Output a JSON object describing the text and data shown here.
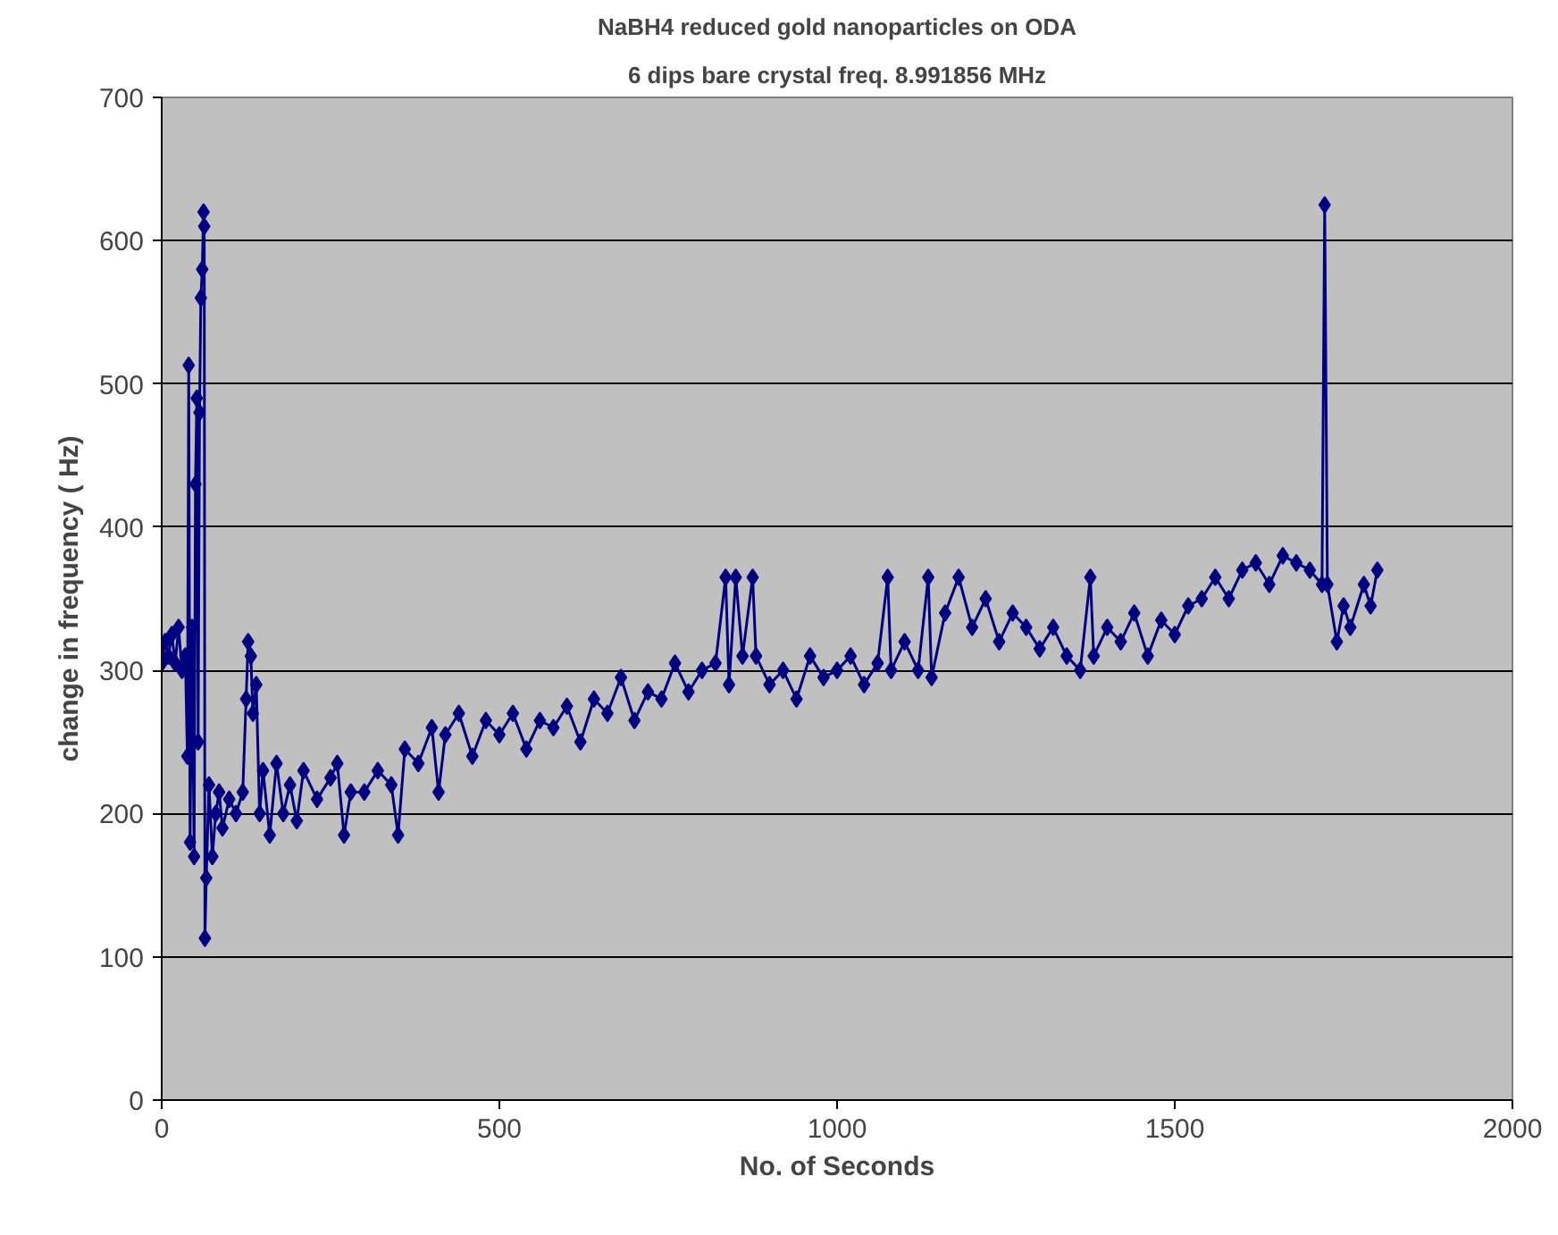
{
  "chart_data": {
    "type": "line",
    "title": "NaBH4 reduced gold nanoparticles on ODA",
    "subtitle": "6 dips bare crystal freq. 8.991856 MHz",
    "xlabel": "No. of Seconds",
    "ylabel": "change in frequency ( Hz)",
    "x": [
      0,
      5,
      10,
      15,
      20,
      25,
      30,
      35,
      38,
      40,
      42,
      45,
      48,
      50,
      52,
      54,
      56,
      58,
      60,
      62,
      63,
      64,
      66,
      70,
      75,
      80,
      85,
      90,
      100,
      110,
      120,
      125,
      128,
      132,
      135,
      140,
      145,
      150,
      160,
      170,
      180,
      190,
      200,
      210,
      230,
      250,
      260,
      270,
      280,
      300,
      320,
      340,
      350,
      360,
      380,
      400,
      410,
      420,
      440,
      460,
      480,
      500,
      520,
      540,
      560,
      580,
      600,
      620,
      640,
      660,
      680,
      700,
      720,
      740,
      760,
      780,
      800,
      820,
      835,
      840,
      850,
      860,
      875,
      880,
      900,
      920,
      940,
      960,
      980,
      1000,
      1020,
      1040,
      1060,
      1075,
      1080,
      1100,
      1120,
      1135,
      1140,
      1160,
      1180,
      1200,
      1220,
      1240,
      1260,
      1280,
      1300,
      1320,
      1340,
      1360,
      1375,
      1380,
      1400,
      1420,
      1440,
      1460,
      1480,
      1500,
      1520,
      1540,
      1560,
      1580,
      1600,
      1620,
      1640,
      1660,
      1680,
      1700,
      1718,
      1722,
      1726,
      1740,
      1750,
      1760,
      1780,
      1790,
      1800
    ],
    "series": [
      {
        "color": "#000080",
        "values": [
          305,
          320,
          310,
          325,
          305,
          330,
          300,
          310,
          240,
          513,
          180,
          330,
          170,
          430,
          490,
          250,
          480,
          560,
          580,
          620,
          610,
          113,
          155,
          220,
          170,
          200,
          215,
          190,
          210,
          200,
          215,
          280,
          320,
          310,
          270,
          290,
          200,
          230,
          185,
          235,
          200,
          220,
          195,
          230,
          210,
          225,
          235,
          185,
          215,
          215,
          230,
          220,
          185,
          245,
          235,
          260,
          215,
          255,
          270,
          240,
          265,
          255,
          270,
          245,
          265,
          260,
          275,
          250,
          280,
          270,
          295,
          265,
          285,
          280,
          305,
          285,
          300,
          305,
          365,
          290,
          365,
          310,
          365,
          310,
          290,
          300,
          280,
          310,
          295,
          300,
          310,
          290,
          305,
          365,
          300,
          320,
          300,
          365,
          295,
          340,
          365,
          330,
          350,
          320,
          340,
          330,
          315,
          330,
          310,
          300,
          365,
          310,
          330,
          320,
          340,
          310,
          335,
          325,
          345,
          350,
          365,
          350,
          370,
          375,
          360,
          380,
          375,
          370,
          360,
          625,
          360,
          320,
          345,
          330,
          360,
          345,
          370
        ]
      }
    ],
    "xlim": [
      0,
      2000
    ],
    "ylim": [
      0,
      700
    ],
    "xticks": [
      0,
      500,
      1000,
      1500,
      2000
    ],
    "yticks": [
      0,
      100,
      200,
      300,
      400,
      500,
      600,
      700
    ],
    "grid": "y",
    "marker": "diamond",
    "line_style": "solid"
  }
}
